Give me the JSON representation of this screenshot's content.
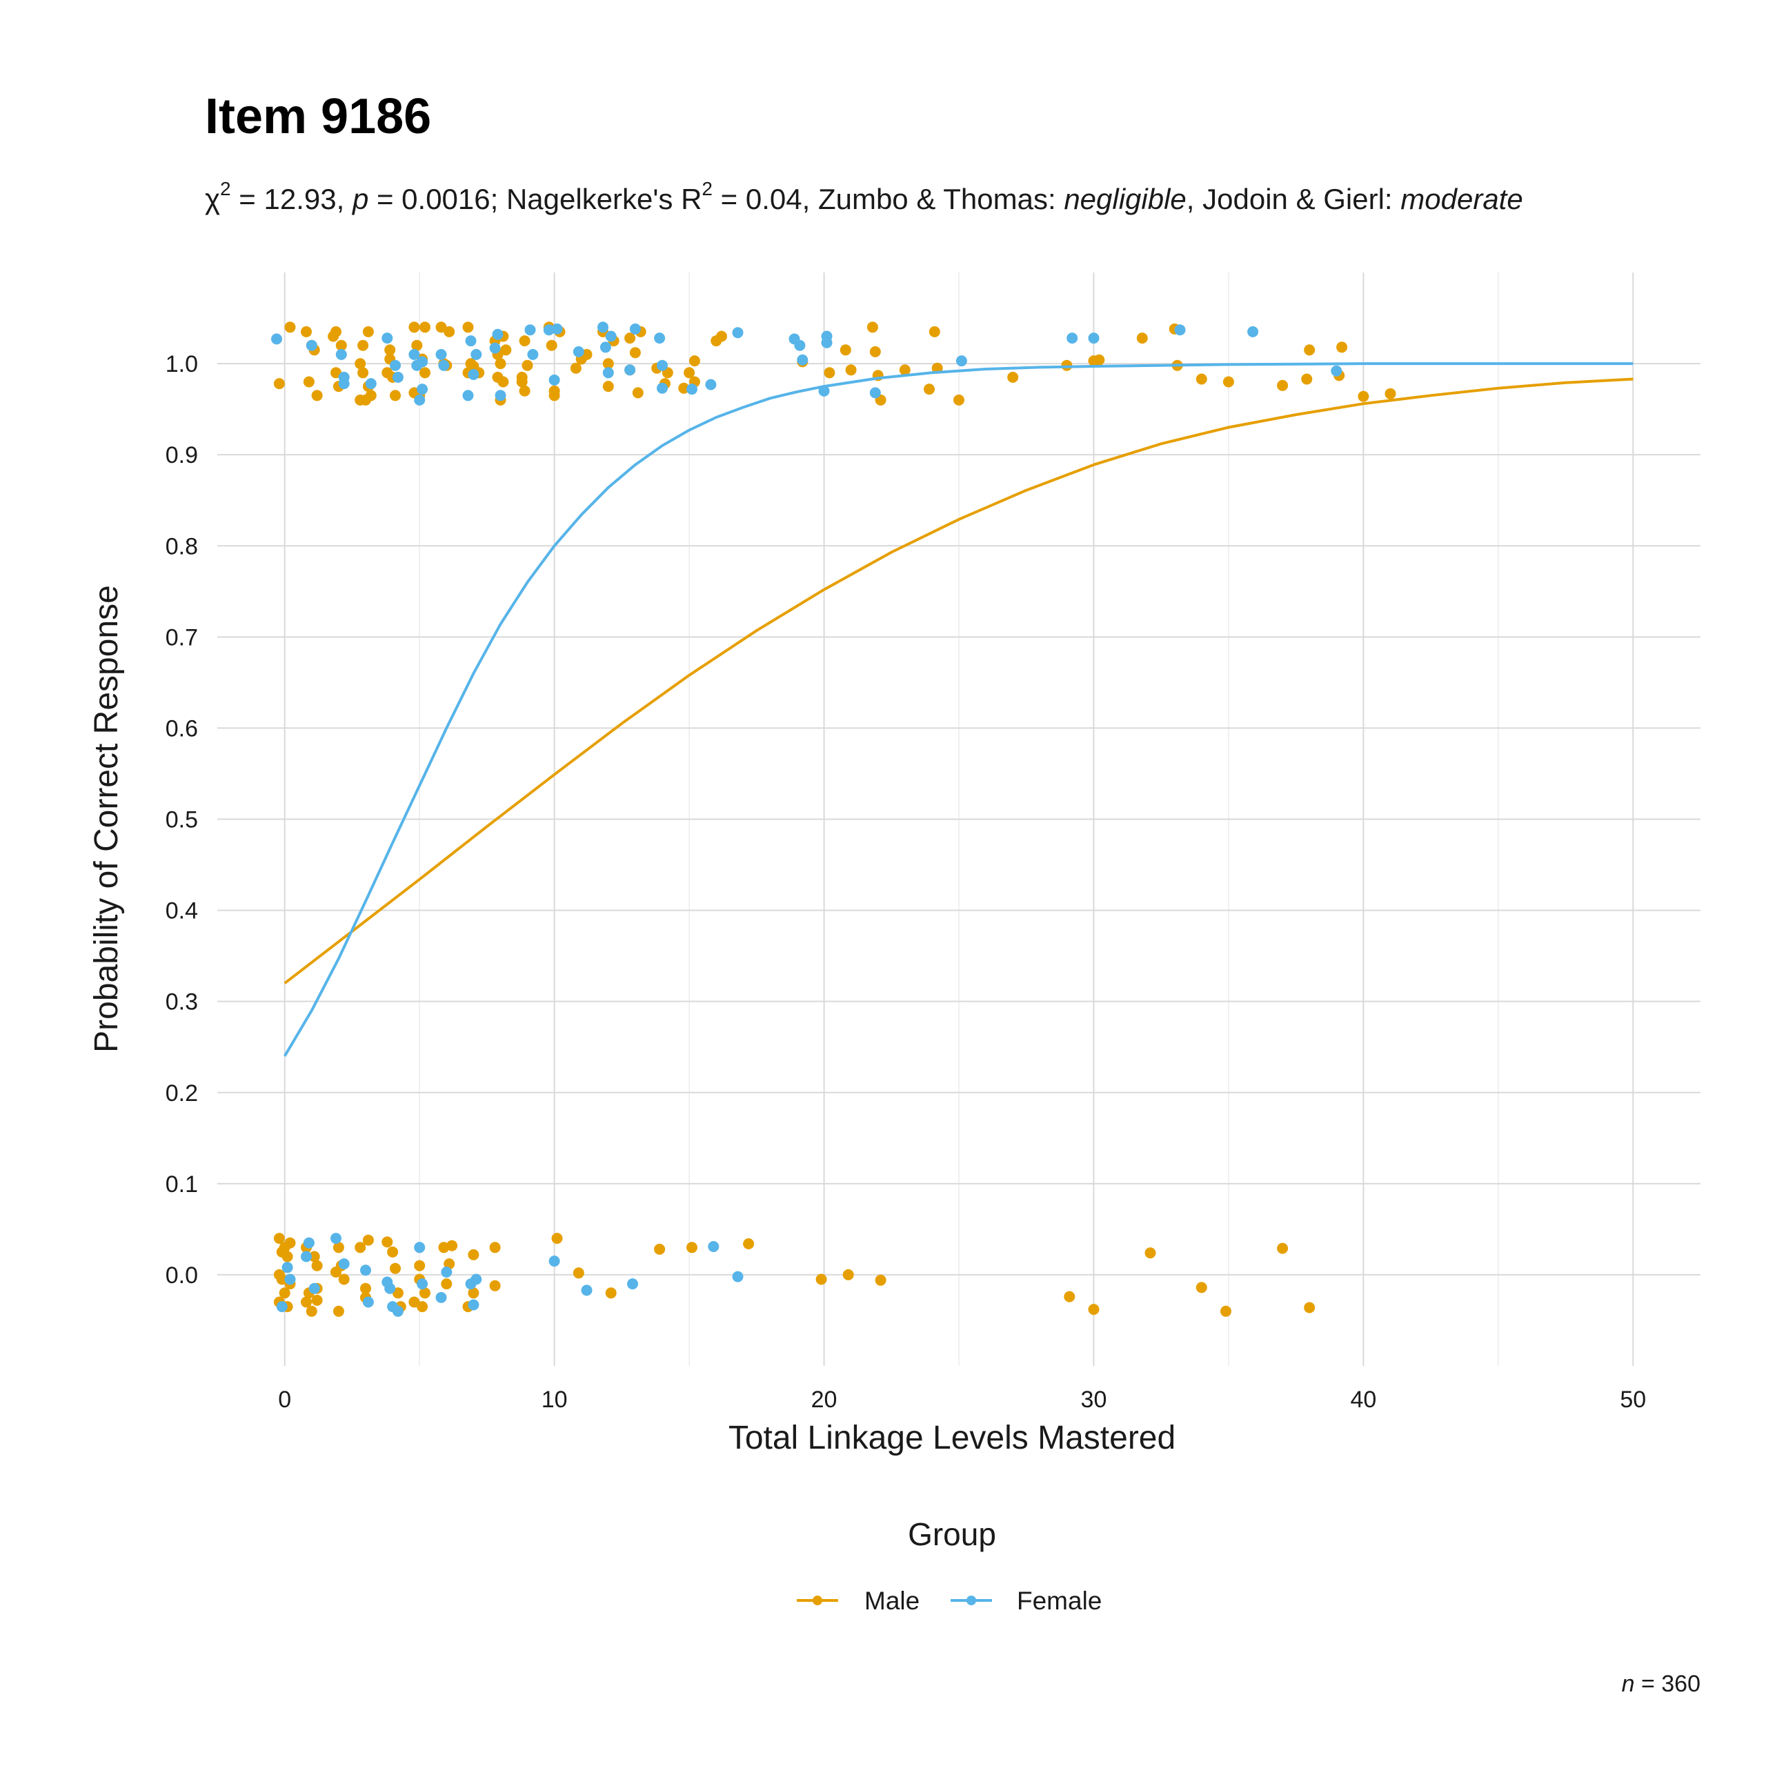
{
  "title": "Item 9186",
  "subtitle": {
    "chi_symbol": "χ",
    "chi_exp": "2",
    "chi_text": " = 12.93, ",
    "p_symbol": "p",
    "p_text": " = 0.0016; Nagelkerke's R",
    "r_exp": "2",
    "r_text": " = 0.04, Zumbo & Thomas: ",
    "zt_class": "negligible",
    "jg_text": ", Jodoin & Gierl: ",
    "jg_class": "moderate"
  },
  "caption": {
    "n_symbol": "n",
    "n_text": " = 360"
  },
  "legend": {
    "title": "Group",
    "male": "Male",
    "female": "Female"
  },
  "colors": {
    "male": "#E69F00",
    "female": "#56B4E9"
  },
  "chart_data": {
    "type": "scatter",
    "title": "Item 9186",
    "xlabel": "Total Linkage Levels Mastered",
    "ylabel": "Probability of Correct Response",
    "xlim": [
      -2.5,
      52.5
    ],
    "ylim": [
      -0.1,
      1.1
    ],
    "x_ticks": [
      "0",
      "10",
      "20",
      "30",
      "40",
      "50"
    ],
    "y_ticks": [
      "0.0",
      "0.1",
      "0.2",
      "0.3",
      "0.4",
      "0.5",
      "0.6",
      "0.7",
      "0.8",
      "0.9",
      "1.0"
    ],
    "grid": true,
    "legend_position": "bottom",
    "curves": [
      {
        "name": "Male",
        "type": "line",
        "x": [
          0,
          2.5,
          5,
          7.5,
          10,
          12.5,
          15,
          17.5,
          20,
          22.5,
          25,
          27.5,
          30,
          32.5,
          35,
          37.5,
          40,
          42.5,
          45,
          47.5,
          50
        ],
        "y": [
          0.32,
          0.377,
          0.434,
          0.492,
          0.549,
          0.605,
          0.658,
          0.707,
          0.752,
          0.793,
          0.829,
          0.861,
          0.889,
          0.912,
          0.93,
          0.944,
          0.956,
          0.965,
          0.973,
          0.979,
          0.983
        ]
      },
      {
        "name": "Female",
        "type": "line",
        "x": [
          0,
          1,
          2,
          3,
          4,
          5,
          6,
          7,
          8,
          9,
          10,
          11,
          12,
          13,
          14,
          15,
          16,
          17,
          18,
          19,
          20,
          22,
          24,
          26,
          28,
          30,
          35,
          40,
          45,
          50
        ],
        "y": [
          0.24,
          0.29,
          0.347,
          0.41,
          0.474,
          0.537,
          0.6,
          0.66,
          0.714,
          0.76,
          0.8,
          0.834,
          0.864,
          0.889,
          0.91,
          0.927,
          0.941,
          0.952,
          0.962,
          0.969,
          0.975,
          0.984,
          0.99,
          0.994,
          0.996,
          0.997,
          0.999,
          1.0,
          1.0,
          1.0
        ]
      }
    ],
    "series": [
      {
        "name": "Male",
        "points": [
          [
            -0.2,
            0.978
          ],
          [
            0.2,
            1.04
          ],
          [
            0.8,
            1.035
          ],
          [
            0.9,
            0.98
          ],
          [
            1,
            1.02
          ],
          [
            1.1,
            1.015
          ],
          [
            1.2,
            0.965
          ],
          [
            1.8,
            1.03
          ],
          [
            1.9,
            1.035
          ],
          [
            1.9,
            0.99
          ],
          [
            2,
            0.975
          ],
          [
            2.1,
            1.02
          ],
          [
            2.8,
            0.96
          ],
          [
            2.8,
            1.0
          ],
          [
            2.9,
            0.99
          ],
          [
            2.9,
            1.02
          ],
          [
            3,
            0.96
          ],
          [
            3.1,
            0.975
          ],
          [
            3.1,
            1.035
          ],
          [
            3.2,
            0.965
          ],
          [
            3.8,
            0.99
          ],
          [
            3.9,
            1.005
          ],
          [
            3.9,
            1.015
          ],
          [
            4,
            0.985
          ],
          [
            4.1,
            0.965
          ],
          [
            4.8,
            1.04
          ],
          [
            4.8,
            0.968
          ],
          [
            4.9,
            1.02
          ],
          [
            5,
            0.965
          ],
          [
            5.1,
            1.005
          ],
          [
            5.2,
            1.04
          ],
          [
            5.2,
            0.99
          ],
          [
            5.8,
            1.04
          ],
          [
            5.9,
            1.0
          ],
          [
            6,
            0.998
          ],
          [
            6.1,
            1.035
          ],
          [
            6.8,
            1.04
          ],
          [
            6.8,
            0.99
          ],
          [
            6.9,
            1.0
          ],
          [
            7,
            0.997
          ],
          [
            7.2,
            0.99
          ],
          [
            7.8,
            1.025
          ],
          [
            7.9,
            1.01
          ],
          [
            7.9,
            0.985
          ],
          [
            8,
            0.96
          ],
          [
            8,
            1.0
          ],
          [
            8.1,
            1.03
          ],
          [
            8.1,
            0.98
          ],
          [
            8.2,
            1.015
          ],
          [
            8.8,
            0.985
          ],
          [
            8.8,
            0.98
          ],
          [
            8.9,
            1.025
          ],
          [
            8.9,
            0.97
          ],
          [
            9,
            0.998
          ],
          [
            9.8,
            1.04
          ],
          [
            9.9,
            1.02
          ],
          [
            10,
            0.965
          ],
          [
            10,
            0.97
          ],
          [
            10.2,
            1.035
          ],
          [
            10.8,
            0.995
          ],
          [
            11,
            1.005
          ],
          [
            11.2,
            1.01
          ],
          [
            11.8,
            1.035
          ],
          [
            12,
            0.975
          ],
          [
            12,
            1.0
          ],
          [
            12.2,
            1.025
          ],
          [
            12.8,
            1.028
          ],
          [
            12.8,
            0.993
          ],
          [
            13,
            1.012
          ],
          [
            13.1,
            0.968
          ],
          [
            13.2,
            1.035
          ],
          [
            13.8,
            0.995
          ],
          [
            14.1,
            0.978
          ],
          [
            14.2,
            0.99
          ],
          [
            14.8,
            0.973
          ],
          [
            15,
            0.99
          ],
          [
            15.2,
            1.003
          ],
          [
            15.2,
            0.98
          ],
          [
            16,
            1.025
          ],
          [
            16.2,
            1.03
          ],
          [
            19.2,
            1.002
          ],
          [
            20.2,
            0.99
          ],
          [
            20.8,
            1.015
          ],
          [
            21,
            0.993
          ],
          [
            21.8,
            1.04
          ],
          [
            21.9,
            1.013
          ],
          [
            22,
            0.987
          ],
          [
            22.1,
            0.96
          ],
          [
            23,
            0.993
          ],
          [
            23.9,
            0.972
          ],
          [
            24.1,
            1.035
          ],
          [
            24.2,
            0.995
          ],
          [
            25,
            0.96
          ],
          [
            27,
            0.985
          ],
          [
            29,
            0.998
          ],
          [
            30,
            1.003
          ],
          [
            30.2,
            1.004
          ],
          [
            31.8,
            1.028
          ],
          [
            33,
            1.038
          ],
          [
            33.1,
            0.998
          ],
          [
            34,
            0.983
          ],
          [
            35,
            0.98
          ],
          [
            37,
            0.976
          ],
          [
            37.9,
            0.983
          ],
          [
            38,
            1.015
          ],
          [
            39.1,
            0.987
          ],
          [
            39.2,
            1.018
          ],
          [
            40,
            0.964
          ],
          [
            41,
            0.967
          ],
          [
            -0.2,
            0.04
          ],
          [
            -0.1,
            0.025
          ],
          [
            0,
            0.03
          ],
          [
            0.1,
            0.02
          ],
          [
            0.2,
            0.035
          ],
          [
            -0.2,
            0.0
          ],
          [
            -0.1,
            -0.005
          ],
          [
            0,
            -0.02
          ],
          [
            0.2,
            -0.01
          ],
          [
            -0.2,
            -0.03
          ],
          [
            0.1,
            -0.035
          ],
          [
            0.8,
            0.03
          ],
          [
            0.9,
            -0.02
          ],
          [
            1,
            -0.04
          ],
          [
            1.1,
            0.02
          ],
          [
            1.2,
            0.01
          ],
          [
            1.2,
            -0.015
          ],
          [
            1.2,
            -0.028
          ],
          [
            0.8,
            -0.03
          ],
          [
            1.9,
            0.003
          ],
          [
            2,
            0.03
          ],
          [
            2,
            -0.04
          ],
          [
            2.1,
            0.01
          ],
          [
            2.2,
            -0.005
          ],
          [
            2.8,
            0.03
          ],
          [
            3,
            -0.025
          ],
          [
            3.1,
            0.038
          ],
          [
            3,
            -0.015
          ],
          [
            3.8,
            0.036
          ],
          [
            4,
            0.025
          ],
          [
            4.1,
            0.007
          ],
          [
            4.2,
            -0.02
          ],
          [
            4.3,
            -0.035
          ],
          [
            4.8,
            -0.03
          ],
          [
            5,
            0.01
          ],
          [
            5,
            -0.005
          ],
          [
            5.1,
            -0.035
          ],
          [
            5.2,
            -0.02
          ],
          [
            5.9,
            0.03
          ],
          [
            6,
            -0.01
          ],
          [
            6.1,
            0.012
          ],
          [
            6.2,
            0.032
          ],
          [
            6.8,
            -0.035
          ],
          [
            7,
            0.022
          ],
          [
            7,
            -0.02
          ],
          [
            7.8,
            -0.012
          ],
          [
            7.8,
            0.03
          ],
          [
            10.1,
            0.04
          ],
          [
            10.9,
            0.002
          ],
          [
            12.1,
            -0.02
          ],
          [
            13.9,
            0.028
          ],
          [
            15.1,
            0.03
          ],
          [
            17.2,
            0.034
          ],
          [
            19.9,
            -0.005
          ],
          [
            20.9,
            0.0
          ],
          [
            22.1,
            -0.006
          ],
          [
            29.1,
            -0.024
          ],
          [
            30,
            -0.038
          ],
          [
            32.1,
            0.024
          ],
          [
            34,
            -0.014
          ],
          [
            34.9,
            -0.04
          ],
          [
            37,
            0.029
          ],
          [
            38,
            -0.036
          ]
        ]
      },
      {
        "name": "Female",
        "points": [
          [
            -0.3,
            1.027
          ],
          [
            1,
            1.02
          ],
          [
            2.1,
            1.01
          ],
          [
            2.2,
            0.985
          ],
          [
            2.2,
            0.978
          ],
          [
            3.2,
            0.978
          ],
          [
            3.8,
            1.028
          ],
          [
            4.1,
            0.998
          ],
          [
            4.2,
            0.985
          ],
          [
            4.8,
            1.01
          ],
          [
            4.9,
            0.998
          ],
          [
            5,
            0.96
          ],
          [
            5.1,
            0.972
          ],
          [
            5.1,
            1.002
          ],
          [
            5.8,
            1.01
          ],
          [
            5.9,
            0.998
          ],
          [
            6.8,
            0.965
          ],
          [
            6.9,
            1.025
          ],
          [
            7,
            0.988
          ],
          [
            7.1,
            1.01
          ],
          [
            7.8,
            1.017
          ],
          [
            7.9,
            1.032
          ],
          [
            8,
            0.965
          ],
          [
            9.1,
            1.037
          ],
          [
            9.2,
            1.01
          ],
          [
            9.8,
            1.037
          ],
          [
            10,
            0.982
          ],
          [
            10.1,
            1.038
          ],
          [
            10.9,
            1.013
          ],
          [
            11.8,
            1.04
          ],
          [
            11.9,
            1.018
          ],
          [
            12,
            0.99
          ],
          [
            12.1,
            1.03
          ],
          [
            12.8,
            0.993
          ],
          [
            13,
            1.038
          ],
          [
            13.9,
            1.028
          ],
          [
            14,
            0.998
          ],
          [
            14,
            0.973
          ],
          [
            15.1,
            0.972
          ],
          [
            15.8,
            0.977
          ],
          [
            16.8,
            1.034
          ],
          [
            18.9,
            1.027
          ],
          [
            19.1,
            1.02
          ],
          [
            19.2,
            1.004
          ],
          [
            20,
            0.97
          ],
          [
            20.1,
            1.03
          ],
          [
            20.1,
            1.023
          ],
          [
            21.9,
            0.968
          ],
          [
            25.1,
            1.003
          ],
          [
            29.2,
            1.028
          ],
          [
            30,
            1.028
          ],
          [
            33.2,
            1.037
          ],
          [
            35.9,
            1.035
          ],
          [
            39,
            0.992
          ],
          [
            -0.1,
            -0.035
          ],
          [
            0.1,
            0.008
          ],
          [
            0.2,
            -0.005
          ],
          [
            0.9,
            0.035
          ],
          [
            0.8,
            0.02
          ],
          [
            1.1,
            -0.015
          ],
          [
            1.9,
            0.04
          ],
          [
            2.2,
            0.012
          ],
          [
            3,
            0.005
          ],
          [
            3.1,
            -0.03
          ],
          [
            3.9,
            -0.015
          ],
          [
            4,
            -0.035
          ],
          [
            4.2,
            -0.04
          ],
          [
            3.8,
            -0.008
          ],
          [
            5,
            0.03
          ],
          [
            5.1,
            -0.01
          ],
          [
            5.8,
            -0.025
          ],
          [
            6,
            0.003
          ],
          [
            6.9,
            -0.01
          ],
          [
            7,
            -0.033
          ],
          [
            7.1,
            -0.005
          ],
          [
            10,
            0.015
          ],
          [
            11.2,
            -0.017
          ],
          [
            12.9,
            -0.01
          ],
          [
            15.9,
            0.031
          ],
          [
            16.8,
            -0.002
          ]
        ]
      }
    ]
  }
}
